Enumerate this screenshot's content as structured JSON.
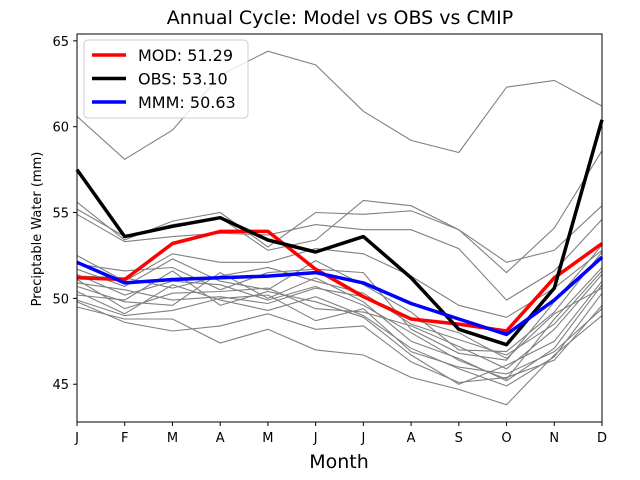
{
  "chart_data": {
    "type": "line",
    "title": "Annual Cycle: Model vs OBS vs CMIP",
    "xlabel": "Month",
    "ylabel": "Preciptable Water (mm)",
    "categories": [
      "J",
      "F",
      "M",
      "A",
      "M",
      "J",
      "J",
      "A",
      "S",
      "O",
      "N",
      "D"
    ],
    "ylim": [
      42.8,
      65.4
    ],
    "yticks": [
      45,
      50,
      55,
      60,
      65
    ],
    "legend_position": "upper-left",
    "legend": [
      {
        "label": "MOD: 51.29",
        "color": "#ff0000"
      },
      {
        "label": "OBS: 53.10",
        "color": "#000000"
      },
      {
        "label": "MMM: 50.63",
        "color": "#0000ff"
      }
    ],
    "highlight_series": [
      {
        "name": "MOD",
        "color": "#ff0000",
        "values": [
          51.2,
          51.1,
          53.2,
          53.9,
          53.9,
          51.7,
          50.1,
          48.8,
          48.5,
          48.1,
          51.2,
          53.2
        ]
      },
      {
        "name": "OBS",
        "color": "#000000",
        "values": [
          57.5,
          53.6,
          54.2,
          54.7,
          53.4,
          52.7,
          53.6,
          51.2,
          48.2,
          47.3,
          50.6,
          60.4
        ]
      },
      {
        "name": "MMM",
        "color": "#0000ff",
        "values": [
          52.1,
          50.9,
          51.1,
          51.2,
          51.3,
          51.5,
          50.9,
          49.7,
          48.8,
          47.9,
          49.9,
          52.4
        ]
      }
    ],
    "cmip_color": "#808080",
    "cmip_series": [
      {
        "name": "cmip-1",
        "values": [
          60.6,
          58.1,
          59.8,
          63.0,
          64.4,
          63.6,
          60.9,
          59.2,
          58.5,
          62.3,
          62.7,
          61.2
        ]
      },
      {
        "name": "cmip-2",
        "values": [
          55.6,
          53.4,
          54.5,
          55.0,
          53.0,
          55.0,
          54.9,
          55.1,
          54.0,
          52.1,
          52.8,
          55.4
        ]
      },
      {
        "name": "cmip-3",
        "values": [
          55.2,
          53.6,
          54.3,
          54.7,
          52.8,
          53.4,
          55.7,
          55.4,
          54.0,
          51.5,
          54.1,
          58.6
        ]
      },
      {
        "name": "cmip-4",
        "values": [
          54.9,
          53.3,
          53.6,
          53.8,
          53.7,
          54.3,
          54.0,
          54.0,
          52.9,
          49.9,
          51.6,
          54.6
        ]
      },
      {
        "name": "cmip-5",
        "values": [
          52.5,
          51.0,
          52.6,
          52.1,
          52.1,
          52.9,
          52.6,
          51.3,
          49.6,
          48.9,
          50.6,
          52.8
        ]
      },
      {
        "name": "cmip-6",
        "values": [
          52.0,
          51.6,
          51.8,
          50.5,
          51.5,
          51.7,
          51.5,
          48.2,
          46.8,
          46.4,
          49.8,
          53.1
        ]
      },
      {
        "name": "cmip-7",
        "values": [
          51.7,
          50.7,
          52.3,
          51.0,
          50.5,
          52.2,
          50.8,
          49.2,
          47.0,
          46.9,
          49.2,
          52.7
        ]
      },
      {
        "name": "cmip-8",
        "values": [
          51.4,
          50.2,
          51.0,
          50.8,
          49.9,
          50.7,
          49.6,
          48.0,
          46.4,
          45.3,
          48.8,
          51.8
        ]
      },
      {
        "name": "cmip-9",
        "values": [
          51.1,
          49.4,
          50.3,
          50.4,
          50.6,
          49.4,
          49.2,
          48.4,
          47.2,
          45.9,
          48.2,
          51.4
        ]
      },
      {
        "name": "cmip-10",
        "values": [
          50.7,
          49.8,
          49.6,
          51.5,
          50.0,
          51.2,
          49.8,
          47.5,
          46.5,
          45.2,
          47.1,
          50.8
        ]
      },
      {
        "name": "cmip-11",
        "values": [
          50.4,
          49.1,
          50.8,
          49.9,
          49.3,
          50.1,
          49.0,
          47.1,
          45.9,
          44.9,
          46.6,
          50.3
        ]
      },
      {
        "name": "cmip-12",
        "values": [
          49.8,
          48.6,
          48.1,
          48.4,
          49.1,
          48.2,
          48.4,
          46.3,
          45.1,
          45.4,
          46.4,
          49.6
        ]
      },
      {
        "name": "cmip-13",
        "values": [
          49.5,
          48.8,
          48.8,
          47.4,
          48.2,
          47.0,
          46.7,
          45.4,
          44.7,
          43.8,
          46.7,
          49.0
        ]
      },
      {
        "name": "cmip-14",
        "values": [
          50.2,
          49.9,
          51.6,
          49.6,
          50.4,
          49.8,
          48.9,
          46.7,
          45.0,
          46.1,
          47.5,
          51.0
        ]
      },
      {
        "name": "cmip-15",
        "values": [
          51.3,
          51.2,
          50.6,
          51.3,
          51.8,
          51.0,
          50.3,
          48.5,
          47.6,
          46.7,
          48.5,
          51.6
        ]
      },
      {
        "name": "cmip-16",
        "values": [
          50.9,
          50.5,
          49.9,
          50.1,
          49.7,
          50.6,
          50.1,
          48.8,
          48.0,
          46.5,
          49.1,
          50.6
        ]
      },
      {
        "name": "cmip-17",
        "values": [
          49.9,
          49.0,
          49.3,
          50.0,
          50.2,
          48.7,
          49.4,
          46.9,
          46.0,
          45.6,
          46.9,
          49.4
        ]
      }
    ]
  }
}
